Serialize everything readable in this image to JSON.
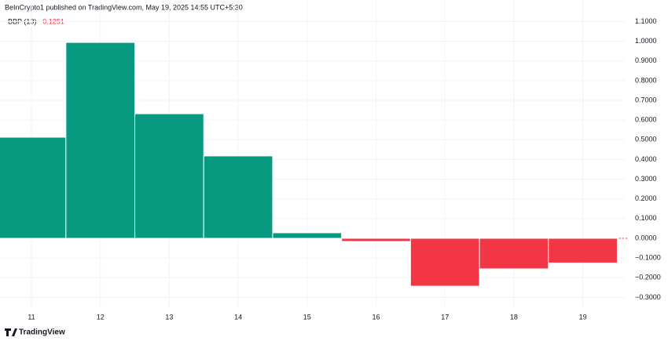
{
  "chart_data": {
    "type": "bar",
    "header": "BeInCrypto1 published on TradingView.com, May 19, 2025 14:55 UTC+5:30",
    "indicator": "BBP (13)",
    "footer": "TradingView",
    "categories": [
      "11",
      "12",
      "13",
      "14",
      "15",
      "16",
      "17",
      "18",
      "19"
    ],
    "values": [
      0.513,
      0.994,
      0.632,
      0.418,
      0.028,
      -0.016,
      -0.243,
      -0.155,
      -0.1251
    ],
    "value_labels": [
      null,
      null,
      null,
      null,
      null,
      null,
      null,
      null,
      "−0.1251"
    ],
    "positive_color": "#089981",
    "negative_color": "#f23645",
    "ylim": [
      -0.33,
      1.14
    ],
    "yticks": [
      {
        "value": 1.1,
        "label": "1.1000"
      },
      {
        "value": 1.0,
        "label": "1.0000"
      },
      {
        "value": 0.9,
        "label": "0.9000"
      },
      {
        "value": 0.8,
        "label": "0.8000"
      },
      {
        "value": 0.7,
        "label": "0.7000"
      },
      {
        "value": 0.6,
        "label": "0.6000"
      },
      {
        "value": 0.5,
        "label": "0.5000"
      },
      {
        "value": 0.4,
        "label": "0.4000"
      },
      {
        "value": 0.3,
        "label": "0.3000"
      },
      {
        "value": 0.2,
        "label": "0.2000"
      },
      {
        "value": 0.1,
        "label": "0.1000"
      },
      {
        "value": 0,
        "label": "0.0000"
      },
      {
        "value": -0.1,
        "label": "−0.1000"
      },
      {
        "value": -0.2,
        "label": "−0.2000"
      },
      {
        "value": -0.3,
        "label": "−0.3000"
      }
    ],
    "grid": true
  }
}
